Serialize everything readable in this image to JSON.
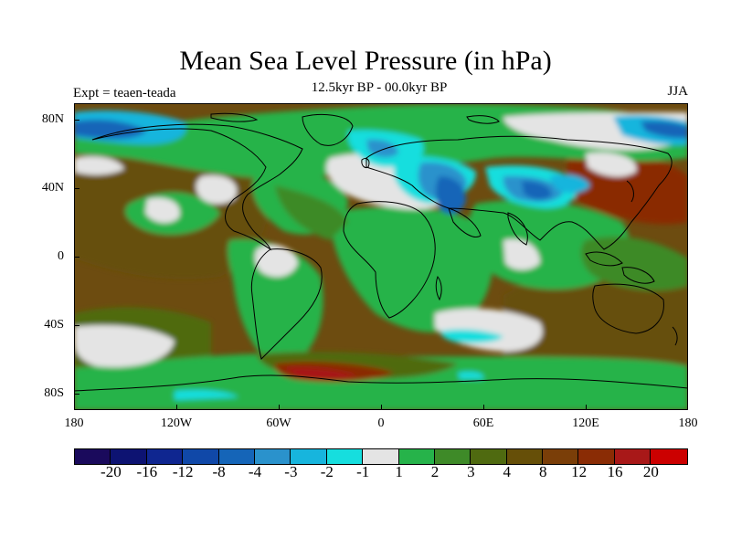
{
  "title": "Mean Sea Level Pressure (in hPa)",
  "subtitle": "12.5kyr BP - 00.0kyr BP",
  "left_label": "Expt = teaen-teada",
  "right_label": "JJA",
  "lat_labels": [
    "80N",
    "40N",
    "0",
    "40S",
    "80S"
  ],
  "lon_labels": [
    "180",
    "120W",
    "60W",
    "0",
    "60E",
    "120E",
    "180"
  ],
  "colorbar": {
    "colors": [
      "#1a0a5c",
      "#0d1372",
      "#0f2690",
      "#1048a8",
      "#1565b8",
      "#2a92cc",
      "#17b5dd",
      "#16dede",
      "#e4e4e4",
      "#26b34a",
      "#3e8a28",
      "#4f6a10",
      "#664f08",
      "#7a3e08",
      "#8a2c05",
      "#a81818",
      "#cc0000"
    ],
    "labels": [
      "-20",
      "-16",
      "-12",
      "-8",
      "-4",
      "-3",
      "-2",
      "-1",
      "1",
      "2",
      "3",
      "4",
      "8",
      "12",
      "16",
      "20"
    ]
  },
  "colors": {
    "ocean_base": "#6d4c10",
    "land_base": "#3e8a28",
    "ocean_brown": "#664f08",
    "olive": "#4f6a10",
    "green": "#26b34a",
    "dark_green": "#3e8a28",
    "neutral": "#e4e4e4",
    "cyan": "#16dede",
    "light_blue": "#17b5dd",
    "mid_blue": "#2a92cc",
    "blue": "#1565b8",
    "dark_blue": "#1048a8",
    "red_brown": "#8a2c05",
    "red": "#a81818"
  }
}
